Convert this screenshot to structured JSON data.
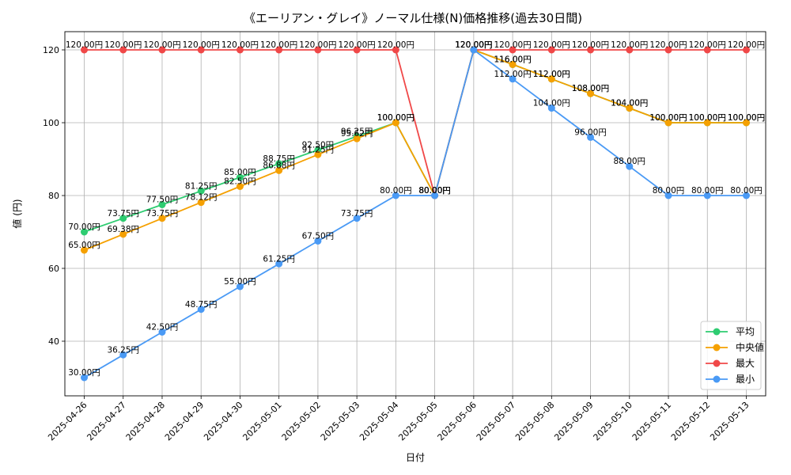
{
  "chart_data": {
    "type": "line",
    "title": "《エーリアン・グレイ》ノーマル仕様(N)価格推移(過去30日間)",
    "xlabel": "日付",
    "ylabel": "値 (円)",
    "ylim": [
      25,
      125
    ],
    "yticks": [
      40,
      60,
      80,
      100,
      120
    ],
    "grid": true,
    "legend_position": "bottom-right",
    "label_suffix": "円",
    "categories": [
      "2025-04-26",
      "2025-04-27",
      "2025-04-28",
      "2025-04-29",
      "2025-04-30",
      "2025-05-01",
      "2025-05-02",
      "2025-05-03",
      "2025-05-04",
      "2025-05-05",
      "2025-05-06",
      "2025-05-07",
      "2025-05-08",
      "2025-05-09",
      "2025-05-10",
      "2025-05-11",
      "2025-05-12",
      "2025-05-13"
    ],
    "series": [
      {
        "name": "平均",
        "color": "#2ecc71",
        "values": [
          70.0,
          73.75,
          77.5,
          81.25,
          85.0,
          88.75,
          92.5,
          96.25,
          100.0,
          80.0,
          120.0,
          116.0,
          112.0,
          108.0,
          104.0,
          100.0,
          100.0,
          100.0
        ],
        "labels": [
          "70.00円",
          "73.75円",
          "77.50円",
          "81.25円",
          "85.00円",
          "88.75円",
          "92.50円",
          "96.25円",
          "100.00円",
          "80.00円",
          "120.00円",
          "116.00円",
          "112.00円",
          "108.00円",
          "104.00円",
          "100.00円",
          "100.00円",
          "100.00円"
        ]
      },
      {
        "name": "中央値",
        "color": "#f5a000",
        "values": [
          65.0,
          69.38,
          73.75,
          78.12,
          82.5,
          86.88,
          91.25,
          95.62,
          100.0,
          80.0,
          120.0,
          116.0,
          112.0,
          108.0,
          104.0,
          100.0,
          100.0,
          100.0
        ],
        "labels": [
          "65.00円",
          "69.38円",
          "73.75円",
          "78.12円",
          "82.50円",
          "86.88円",
          "91.25円",
          "95.62円",
          "100.00円",
          "80.00円",
          "120.00円",
          "116.00円",
          "112.00円",
          "108.00円",
          "104.00円",
          "100.00円",
          "100.00円",
          "100.00円"
        ]
      },
      {
        "name": "最大",
        "color": "#f04848",
        "values": [
          120,
          120,
          120,
          120,
          120,
          120,
          120,
          120,
          120,
          80,
          120,
          120,
          120,
          120,
          120,
          120,
          120,
          120
        ],
        "labels": [
          "120.00円",
          "120.00円",
          "120.00円",
          "120.00円",
          "120.00円",
          "120.00円",
          "120.00円",
          "120.00円",
          "120.00円",
          "80.00円",
          "120.00円",
          "120.00円",
          "120.00円",
          "120.00円",
          "120.00円",
          "120.00円",
          "120.00円",
          "120.00円"
        ]
      },
      {
        "name": "最小",
        "color": "#4a9af5",
        "values": [
          30.0,
          36.25,
          42.5,
          48.75,
          55.0,
          61.25,
          67.5,
          73.75,
          80.0,
          80.0,
          120.0,
          112.0,
          104.0,
          96.0,
          88.0,
          80.0,
          80.0,
          80.0
        ],
        "labels": [
          "30.00円",
          "36.25円",
          "42.50円",
          "48.75円",
          "55.00円",
          "61.25円",
          "67.50円",
          "73.75円",
          "80.00円",
          "80.00円",
          "120.00円",
          "112.00円",
          "104.00円",
          "96.00円",
          "88.00円",
          "80.00円",
          "80.00円",
          "80.00円"
        ]
      }
    ]
  }
}
